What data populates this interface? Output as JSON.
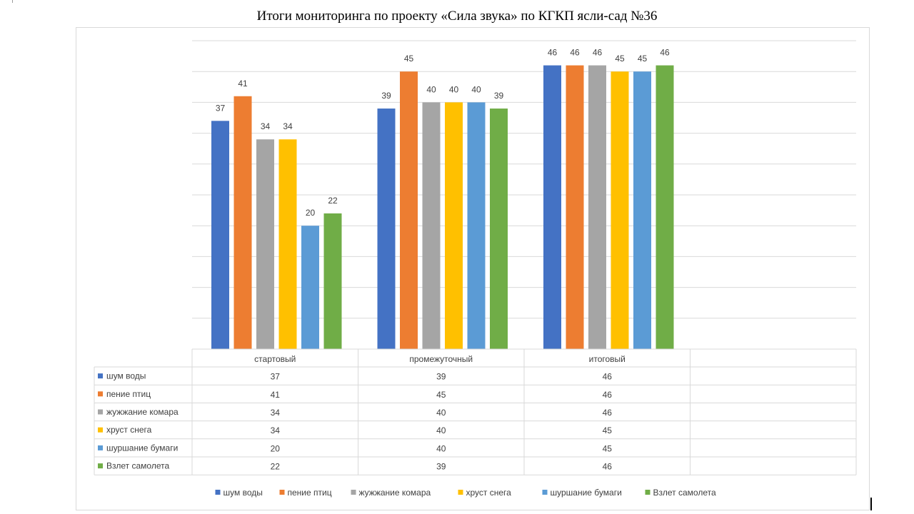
{
  "chart_data": {
    "type": "bar",
    "title": "Итоги мониторинга по проекту «Сила звука» по КГКП ясли-сад №36",
    "categories": [
      "стартовый",
      "промежуточный",
      "итоговый"
    ],
    "ylim": [
      0,
      50
    ],
    "grid": true,
    "legend_position": "bottom",
    "data_table": true,
    "series": [
      {
        "name": "шум воды",
        "color": "#4472C4",
        "values": [
          37,
          39,
          46
        ]
      },
      {
        "name": "пение птиц",
        "color": "#ED7D31",
        "values": [
          41,
          45,
          46
        ]
      },
      {
        "name": "жужжание комара",
        "color": "#A5A5A5",
        "values": [
          34,
          40,
          46
        ]
      },
      {
        "name": "хруст снега",
        "color": "#FFC000",
        "values": [
          34,
          40,
          45
        ]
      },
      {
        "name": "шуршание бумаги",
        "color": "#5B9BD5",
        "values": [
          20,
          40,
          45
        ]
      },
      {
        "name": "Взлет самолета",
        "color": "#70AD47",
        "values": [
          22,
          39,
          46
        ]
      }
    ]
  }
}
